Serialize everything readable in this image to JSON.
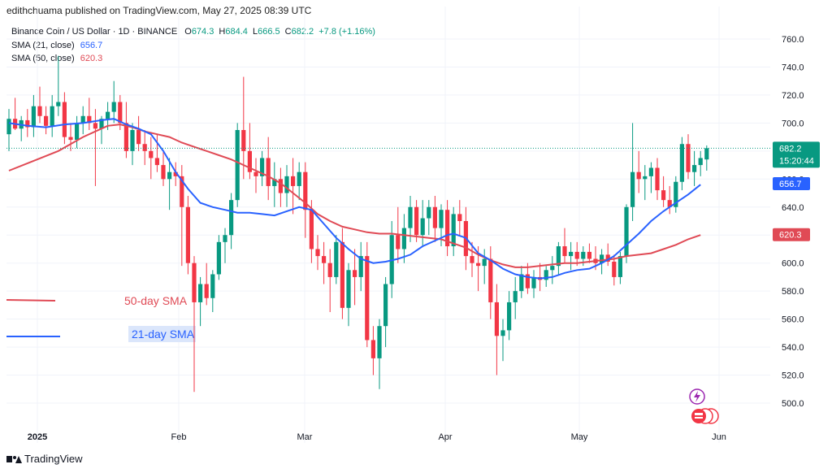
{
  "header": {
    "publisher_line": "edithchuama published on TradingView.com, May 27, 2025 08:39 UTC"
  },
  "legend": {
    "symbol": "Binance Coin / US Dollar · 1D · BINANCE",
    "ohlc": [
      {
        "k": "O",
        "v": "674.3"
      },
      {
        "k": "H",
        "v": "684.4"
      },
      {
        "k": "L",
        "v": "666.5"
      },
      {
        "k": "C",
        "v": "682.2"
      }
    ],
    "change": "+7.8 (+1.16%)",
    "sma21_label": "SMA (21, close)",
    "sma21_value": "656.7",
    "sma50_label": "SMA (50, close)",
    "sma50_value": "620.3"
  },
  "annotations": {
    "sma50_text": "50-day SMA",
    "sma21_text": "21-day SMA"
  },
  "price_badges": {
    "last_price": "682.2",
    "countdown": "15:20:44",
    "sma21": "656.7",
    "sma50": "620.3"
  },
  "footer": {
    "brand": "TradingView"
  },
  "colors": {
    "up": "#089981",
    "down": "#f23645",
    "sma21": "#2962ff",
    "sma50": "#e04a55",
    "grid": "#f0f3fa"
  },
  "chart_data": {
    "type": "candlestick",
    "y_ticks": [
      "760.0",
      "740.0",
      "720.0",
      "700.0",
      "680.0",
      "660.0",
      "640.0",
      "620.0",
      "600.0",
      "580.0",
      "560.0",
      "540.0",
      "520.0",
      "500.0"
    ],
    "x_ticks": [
      "2025",
      "Feb",
      "Mar",
      "Apr",
      "May",
      "Jun"
    ],
    "ylim": [
      488,
      770
    ],
    "grid": true,
    "candles": [
      [
        692,
        710,
        680,
        703
      ],
      [
        703,
        718,
        695,
        696
      ],
      [
        696,
        705,
        687,
        702
      ],
      [
        702,
        710,
        690,
        697
      ],
      [
        697,
        720,
        690,
        712
      ],
      [
        712,
        726,
        700,
        705
      ],
      [
        705,
        712,
        692,
        698
      ],
      [
        698,
        720,
        690,
        712
      ],
      [
        712,
        748,
        705,
        715
      ],
      [
        715,
        722,
        685,
        690
      ],
      [
        690,
        700,
        680,
        688
      ],
      [
        688,
        705,
        682,
        700
      ],
      [
        700,
        712,
        692,
        705
      ],
      [
        705,
        718,
        695,
        700
      ],
      [
        700,
        710,
        655,
        696
      ],
      [
        696,
        705,
        685,
        703
      ],
      [
        703,
        715,
        695,
        708
      ],
      [
        708,
        730,
        700,
        715
      ],
      [
        715,
        720,
        695,
        700
      ],
      [
        700,
        715,
        675,
        680
      ],
      [
        680,
        700,
        670,
        695
      ],
      [
        695,
        705,
        680,
        685
      ],
      [
        685,
        695,
        670,
        680
      ],
      [
        680,
        690,
        660,
        675
      ],
      [
        675,
        692,
        665,
        670
      ],
      [
        670,
        680,
        655,
        660
      ],
      [
        660,
        675,
        638,
        665
      ],
      [
        665,
        672,
        655,
        662
      ],
      [
        662,
        670,
        598,
        640
      ],
      [
        640,
        648,
        592,
        600
      ],
      [
        600,
        605,
        508,
        572
      ],
      [
        572,
        590,
        555,
        585
      ],
      [
        585,
        600,
        570,
        575
      ],
      [
        575,
        595,
        565,
        592
      ],
      [
        592,
        620,
        588,
        615
      ],
      [
        615,
        625,
        600,
        620
      ],
      [
        620,
        650,
        610,
        645
      ],
      [
        645,
        700,
        640,
        695
      ],
      [
        695,
        733,
        660,
        680
      ],
      [
        680,
        700,
        660,
        665
      ],
      [
        665,
        675,
        650,
        662
      ],
      [
        662,
        680,
        655,
        675
      ],
      [
        675,
        690,
        645,
        655
      ],
      [
        655,
        672,
        640,
        660
      ],
      [
        660,
        668,
        640,
        650
      ],
      [
        650,
        670,
        640,
        662
      ],
      [
        662,
        675,
        635,
        655
      ],
      [
        655,
        672,
        645,
        665
      ],
      [
        665,
        672,
        618,
        638
      ],
      [
        638,
        645,
        600,
        610
      ],
      [
        610,
        620,
        595,
        605
      ],
      [
        605,
        615,
        585,
        600
      ],
      [
        600,
        610,
        565,
        590
      ],
      [
        590,
        620,
        585,
        615
      ],
      [
        615,
        625,
        560,
        568
      ],
      [
        568,
        600,
        555,
        595
      ],
      [
        595,
        610,
        570,
        590
      ],
      [
        590,
        615,
        580,
        605
      ],
      [
        605,
        615,
        540,
        545
      ],
      [
        545,
        555,
        520,
        532
      ],
      [
        532,
        560,
        510,
        555
      ],
      [
        555,
        590,
        540,
        585
      ],
      [
        585,
        630,
        575,
        620
      ],
      [
        620,
        640,
        600,
        610
      ],
      [
        610,
        635,
        600,
        625
      ],
      [
        625,
        648,
        615,
        640
      ],
      [
        640,
        645,
        615,
        620
      ],
      [
        620,
        645,
        612,
        632
      ],
      [
        632,
        645,
        620,
        640
      ],
      [
        640,
        648,
        615,
        625
      ],
      [
        625,
        642,
        612,
        638
      ],
      [
        638,
        645,
        605,
        612
      ],
      [
        612,
        640,
        605,
        635
      ],
      [
        635,
        645,
        620,
        630
      ],
      [
        630,
        640,
        595,
        605
      ],
      [
        605,
        615,
        590,
        600
      ],
      [
        600,
        612,
        580,
        598
      ],
      [
        598,
        610,
        585,
        603
      ],
      [
        603,
        612,
        560,
        572
      ],
      [
        572,
        585,
        520,
        548
      ],
      [
        548,
        560,
        530,
        552
      ],
      [
        552,
        580,
        545,
        572
      ],
      [
        572,
        590,
        560,
        580
      ],
      [
        580,
        598,
        575,
        592
      ],
      [
        592,
        600,
        578,
        582
      ],
      [
        582,
        595,
        575,
        590
      ],
      [
        590,
        600,
        580,
        588
      ],
      [
        588,
        598,
        583,
        595
      ],
      [
        595,
        605,
        585,
        598
      ],
      [
        598,
        615,
        592,
        612
      ],
      [
        612,
        625,
        600,
        605
      ],
      [
        605,
        615,
        595,
        608
      ],
      [
        608,
        615,
        598,
        603
      ],
      [
        603,
        612,
        598,
        608
      ],
      [
        608,
        614,
        600,
        603
      ],
      [
        603,
        612,
        595,
        600
      ],
      [
        600,
        610,
        592,
        606
      ],
      [
        606,
        614,
        598,
        601
      ],
      [
        601,
        606,
        584,
        590
      ],
      [
        590,
        608,
        585,
        605
      ],
      [
        605,
        642,
        600,
        640
      ],
      [
        640,
        700,
        630,
        665
      ],
      [
        665,
        680,
        650,
        660
      ],
      [
        660,
        670,
        645,
        662
      ],
      [
        662,
        672,
        650,
        668
      ],
      [
        668,
        675,
        645,
        652
      ],
      [
        652,
        662,
        640,
        645
      ],
      [
        645,
        655,
        635,
        640
      ],
      [
        640,
        662,
        636,
        658
      ],
      [
        658,
        690,
        652,
        685
      ],
      [
        685,
        692,
        660,
        665
      ],
      [
        665,
        680,
        655,
        670
      ],
      [
        670,
        680,
        662,
        675
      ],
      [
        674,
        684,
        666,
        682
      ]
    ],
    "sma21": [
      [
        0,
        700
      ],
      [
        3,
        698
      ],
      [
        6,
        697
      ],
      [
        9,
        699
      ],
      [
        12,
        700
      ],
      [
        15,
        702
      ],
      [
        17,
        703
      ],
      [
        19,
        699
      ],
      [
        21,
        696
      ],
      [
        23,
        692
      ],
      [
        25,
        680
      ],
      [
        27,
        665
      ],
      [
        29,
        653
      ],
      [
        31,
        643
      ],
      [
        33,
        640
      ],
      [
        35,
        638
      ],
      [
        37,
        636
      ],
      [
        39,
        636
      ],
      [
        41,
        635
      ],
      [
        43,
        634
      ],
      [
        45,
        637
      ],
      [
        47,
        640
      ],
      [
        49,
        638
      ],
      [
        51,
        628
      ],
      [
        53,
        618
      ],
      [
        55,
        610
      ],
      [
        57,
        603
      ],
      [
        59,
        600
      ],
      [
        61,
        601
      ],
      [
        63,
        603
      ],
      [
        65,
        606
      ],
      [
        67,
        612
      ],
      [
        69,
        616
      ],
      [
        71,
        620
      ],
      [
        72,
        621
      ],
      [
        74,
        618
      ],
      [
        76,
        607
      ],
      [
        78,
        602
      ],
      [
        80,
        596
      ],
      [
        82,
        592
      ],
      [
        84,
        590
      ],
      [
        86,
        589
      ],
      [
        88,
        590
      ],
      [
        90,
        593
      ],
      [
        92,
        595
      ],
      [
        94,
        596
      ],
      [
        96,
        600
      ],
      [
        98,
        605
      ],
      [
        100,
        613
      ],
      [
        102,
        621
      ],
      [
        104,
        630
      ],
      [
        106,
        637
      ],
      [
        108,
        643
      ],
      [
        110,
        649
      ],
      [
        112,
        656
      ]
    ],
    "sma50": [
      [
        0,
        666
      ],
      [
        4,
        673
      ],
      [
        8,
        680
      ],
      [
        12,
        690
      ],
      [
        16,
        698
      ],
      [
        18,
        699
      ],
      [
        20,
        697
      ],
      [
        22,
        694
      ],
      [
        24,
        692
      ],
      [
        26,
        690
      ],
      [
        28,
        686
      ],
      [
        30,
        683
      ],
      [
        32,
        680
      ],
      [
        34,
        677
      ],
      [
        36,
        674
      ],
      [
        38,
        670
      ],
      [
        40,
        666
      ],
      [
        42,
        662
      ],
      [
        44,
        657
      ],
      [
        46,
        650
      ],
      [
        48,
        643
      ],
      [
        50,
        635
      ],
      [
        52,
        630
      ],
      [
        54,
        626
      ],
      [
        56,
        624
      ],
      [
        58,
        622
      ],
      [
        60,
        621
      ],
      [
        62,
        621
      ],
      [
        64,
        620
      ],
      [
        66,
        619
      ],
      [
        68,
        618
      ],
      [
        70,
        617
      ],
      [
        72,
        614
      ],
      [
        74,
        611
      ],
      [
        76,
        606
      ],
      [
        78,
        602
      ],
      [
        80,
        599
      ],
      [
        82,
        597
      ],
      [
        84,
        597
      ],
      [
        86,
        598
      ],
      [
        88,
        599
      ],
      [
        90,
        600
      ],
      [
        92,
        600
      ],
      [
        94,
        601
      ],
      [
        96,
        602
      ],
      [
        98,
        603
      ],
      [
        100,
        605
      ],
      [
        102,
        606
      ],
      [
        104,
        607
      ],
      [
        106,
        610
      ],
      [
        108,
        613
      ],
      [
        110,
        617
      ],
      [
        112,
        620
      ]
    ]
  }
}
